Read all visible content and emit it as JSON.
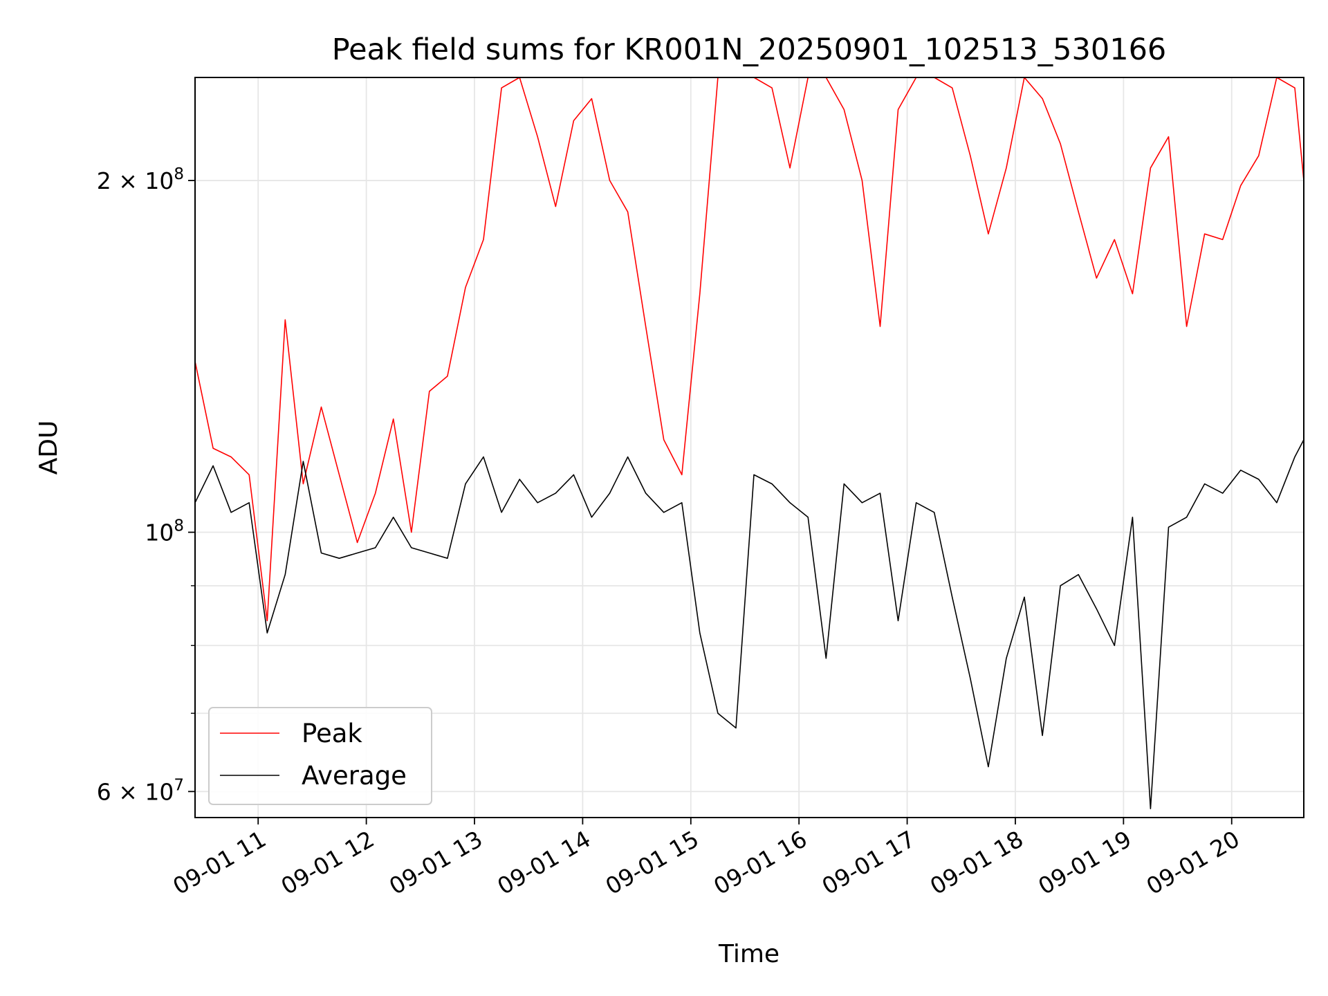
{
  "chart_data": {
    "type": "line",
    "title": "Peak field sums for KR001N_20250901_102513_530166",
    "xlabel": "Time",
    "ylabel": "ADU",
    "yscale": "log",
    "xlim": [
      "2025-09-01 10:25",
      "2025-09-01 20:40"
    ],
    "ylim": [
      57000000,
      245000000
    ],
    "grid": true,
    "legend_position": "lower-left",
    "x_ticks": [
      "09-01 11",
      "09-01 12",
      "09-01 13",
      "09-01 14",
      "09-01 15",
      "09-01 16",
      "09-01 17",
      "09-01 18",
      "09-01 19",
      "09-01 20"
    ],
    "y_tick_labels": [
      {
        "value": 60000000,
        "mantissa": "6",
        "exponent": "7"
      },
      {
        "value": 100000000,
        "mantissa": "",
        "exponent": "8"
      },
      {
        "value": 200000000,
        "mantissa": "2",
        "exponent": "8"
      }
    ],
    "y_minor_ticks": [
      70000000,
      80000000,
      90000000
    ],
    "x": [
      "10:25",
      "10:35",
      "10:45",
      "10:55",
      "11:05",
      "11:15",
      "11:25",
      "11:35",
      "11:45",
      "11:55",
      "12:05",
      "12:15",
      "12:25",
      "12:35",
      "12:45",
      "12:55",
      "13:05",
      "13:15",
      "13:25",
      "13:35",
      "13:45",
      "13:55",
      "14:05",
      "14:15",
      "14:25",
      "14:35",
      "14:45",
      "14:55",
      "15:05",
      "15:15",
      "15:25",
      "15:35",
      "15:45",
      "15:55",
      "16:05",
      "16:15",
      "16:25",
      "16:35",
      "16:45",
      "16:55",
      "17:05",
      "17:15",
      "17:25",
      "17:35",
      "17:45",
      "17:55",
      "18:05",
      "18:15",
      "18:25",
      "18:35",
      "18:45",
      "18:55",
      "19:05",
      "19:15",
      "19:25",
      "19:35",
      "19:45",
      "19:55",
      "20:05",
      "20:15",
      "20:25",
      "20:35",
      "20:40"
    ],
    "series": [
      {
        "name": "Peak",
        "color": "#ff0000",
        "values": [
          140000000,
          118000000,
          116000000,
          112000000,
          84000000,
          152000000,
          110000000,
          128000000,
          112000000,
          98000000,
          108000000,
          125000000,
          100000000,
          132000000,
          136000000,
          162000000,
          178000000,
          240000000,
          245000000,
          218000000,
          190000000,
          225000000,
          235000000,
          200000000,
          188000000,
          150000000,
          120000000,
          112000000,
          160000000,
          245000000,
          245000000,
          245000000,
          240000000,
          205000000,
          245000000,
          245000000,
          230000000,
          200000000,
          150000000,
          230000000,
          245000000,
          245000000,
          240000000,
          210000000,
          180000000,
          205000000,
          245000000,
          235000000,
          215000000,
          188000000,
          165000000,
          178000000,
          160000000,
          205000000,
          218000000,
          150000000,
          180000000,
          178000000,
          198000000,
          210000000,
          245000000,
          240000000,
          200000000
        ]
      },
      {
        "name": "Average",
        "color": "#000000",
        "values": [
          106000000,
          114000000,
          104000000,
          106000000,
          82000000,
          92000000,
          115000000,
          96000000,
          95000000,
          96000000,
          97000000,
          103000000,
          97000000,
          96000000,
          95000000,
          110000000,
          116000000,
          104000000,
          111000000,
          106000000,
          108000000,
          112000000,
          103000000,
          108000000,
          116000000,
          108000000,
          104000000,
          106000000,
          82000000,
          70000000,
          68000000,
          112000000,
          110000000,
          106000000,
          103000000,
          78000000,
          110000000,
          106000000,
          108000000,
          84000000,
          106000000,
          104000000,
          88000000,
          75000000,
          63000000,
          78000000,
          88000000,
          67000000,
          90000000,
          92000000,
          86000000,
          80000000,
          103000000,
          58000000,
          101000000,
          103000000,
          110000000,
          108000000,
          113000000,
          111000000,
          106000000,
          116000000,
          120000000
        ]
      }
    ]
  }
}
